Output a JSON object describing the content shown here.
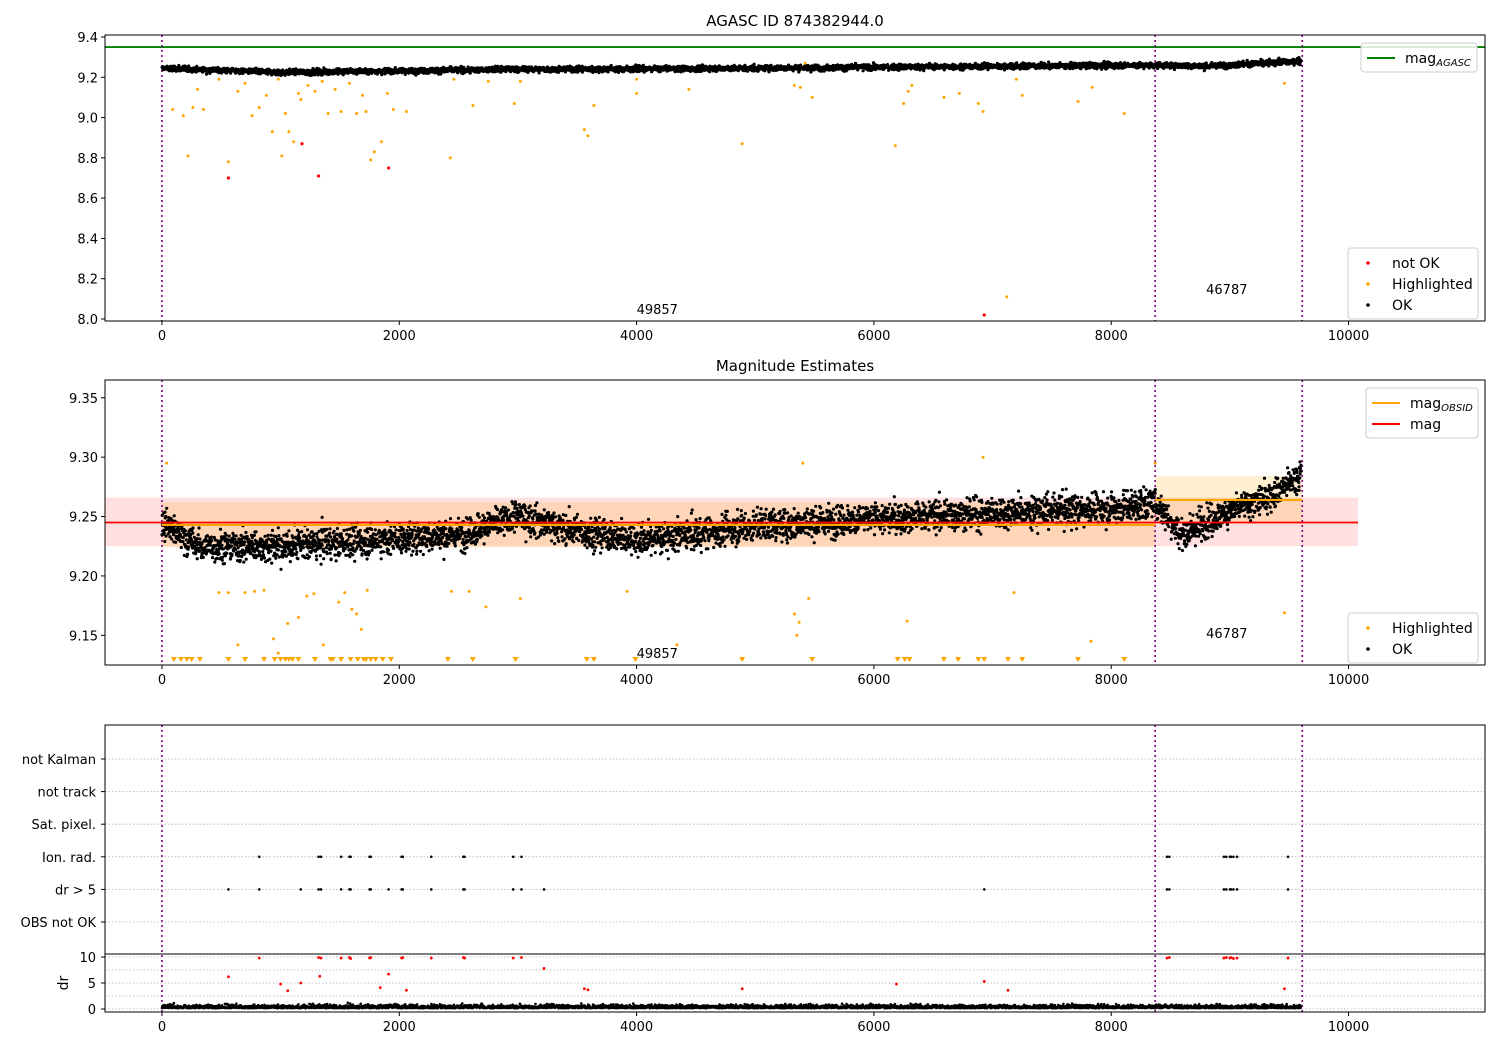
{
  "colors": {
    "ok": "#000000",
    "highlighted": "#ffa500",
    "not_ok": "#ff0000",
    "agasc_line": "#008000",
    "mag_line": "#ff0000",
    "obsid_line": "#ffa500",
    "obs_boundary": "#800080",
    "grid": "#b0b0b0"
  },
  "chart_data": [
    {
      "type": "scatter",
      "title": "AGASC ID 874382944.0",
      "xlim": [
        -480,
        11150
      ],
      "ylim": [
        7.99,
        9.41
      ],
      "xticks": [
        "0",
        "2000",
        "4000",
        "6000",
        "8000",
        "10000"
      ],
      "xtick_values": [
        0,
        2000,
        4000,
        6000,
        8000,
        10000
      ],
      "yticks": [
        "8.0",
        "8.2",
        "8.4",
        "8.6",
        "8.8",
        "9.0",
        "9.2",
        "9.4"
      ],
      "ytick_values": [
        8.0,
        8.2,
        8.4,
        8.6,
        8.8,
        9.0,
        9.2,
        9.4
      ],
      "obs_boundaries": [
        0,
        8370,
        9610
      ],
      "obsid_labels": [
        {
          "text": "49857",
          "x": 4000,
          "y": 8.05
        },
        {
          "text": "46787",
          "x": 8800,
          "y": 8.15
        }
      ],
      "mag_agasc": 9.35,
      "ok_band": {
        "x_start": 0,
        "x_end": 9600,
        "segments": [
          {
            "x": 0,
            "y": 9.245
          },
          {
            "x": 1000,
            "y": 9.225
          },
          {
            "x": 3000,
            "y": 9.24
          },
          {
            "x": 5000,
            "y": 9.245
          },
          {
            "x": 7000,
            "y": 9.255
          },
          {
            "x": 8370,
            "y": 9.26
          },
          {
            "x": 8800,
            "y": 9.255
          },
          {
            "x": 9600,
            "y": 9.28
          }
        ]
      },
      "highlighted": [
        [
          90,
          9.04
        ],
        [
          180,
          9.01
        ],
        [
          220,
          8.81
        ],
        [
          260,
          9.05
        ],
        [
          300,
          9.14
        ],
        [
          350,
          9.04
        ],
        [
          480,
          9.19
        ],
        [
          560,
          8.78
        ],
        [
          640,
          9.13
        ],
        [
          700,
          9.17
        ],
        [
          760,
          9.01
        ],
        [
          820,
          9.05
        ],
        [
          880,
          9.11
        ],
        [
          930,
          8.93
        ],
        [
          980,
          9.19
        ],
        [
          1010,
          8.81
        ],
        [
          1040,
          9.02
        ],
        [
          1070,
          8.93
        ],
        [
          1110,
          8.88
        ],
        [
          1150,
          9.12
        ],
        [
          1170,
          9.09
        ],
        [
          1230,
          9.16
        ],
        [
          1290,
          9.13
        ],
        [
          1350,
          9.18
        ],
        [
          1400,
          9.02
        ],
        [
          1460,
          9.14
        ],
        [
          1510,
          9.03
        ],
        [
          1580,
          9.17
        ],
        [
          1640,
          9.02
        ],
        [
          1690,
          9.11
        ],
        [
          1720,
          9.03
        ],
        [
          1760,
          8.79
        ],
        [
          1790,
          8.83
        ],
        [
          1850,
          8.88
        ],
        [
          1900,
          9.12
        ],
        [
          1950,
          9.04
        ],
        [
          2060,
          9.03
        ],
        [
          2430,
          8.8
        ],
        [
          2460,
          9.19
        ],
        [
          2620,
          9.06
        ],
        [
          2750,
          9.18
        ],
        [
          2970,
          9.07
        ],
        [
          3020,
          9.18
        ],
        [
          3560,
          8.94
        ],
        [
          3590,
          8.91
        ],
        [
          3640,
          9.06
        ],
        [
          4000,
          9.19
        ],
        [
          4000,
          9.12
        ],
        [
          4440,
          9.14
        ],
        [
          4890,
          8.87
        ],
        [
          5330,
          9.16
        ],
        [
          5380,
          9.15
        ],
        [
          5420,
          9.27
        ],
        [
          5480,
          9.1
        ],
        [
          6180,
          8.86
        ],
        [
          6250,
          9.07
        ],
        [
          6290,
          9.13
        ],
        [
          6320,
          9.16
        ],
        [
          6590,
          9.1
        ],
        [
          6720,
          9.12
        ],
        [
          6880,
          9.07
        ],
        [
          6920,
          9.03
        ],
        [
          7120,
          8.11
        ],
        [
          7200,
          9.19
        ],
        [
          7250,
          9.11
        ],
        [
          7720,
          9.08
        ],
        [
          7840,
          9.15
        ],
        [
          8110,
          9.02
        ],
        [
          9460,
          9.17
        ]
      ],
      "not_ok": [
        [
          560,
          8.7
        ],
        [
          1180,
          8.87
        ],
        [
          1320,
          8.71
        ],
        [
          1910,
          8.75
        ],
        [
          6930,
          8.02
        ]
      ],
      "legends": [
        {
          "position": "upper-right",
          "entries": [
            {
              "label": "mag",
              "subscript": "AGASC",
              "kind": "line",
              "color": "#008000"
            }
          ]
        },
        {
          "position": "lower-right",
          "entries": [
            {
              "label": "not OK",
              "kind": "dot",
              "color": "#ff0000"
            },
            {
              "label": "Highlighted",
              "kind": "dot",
              "color": "#ffa500"
            },
            {
              "label": "OK",
              "kind": "dot",
              "color": "#000000"
            }
          ]
        }
      ]
    },
    {
      "type": "scatter",
      "title": "Magnitude Estimates",
      "xlim": [
        -480,
        11150
      ],
      "ylim": [
        9.125,
        9.365
      ],
      "xticks": [
        "0",
        "2000",
        "4000",
        "6000",
        "8000",
        "10000"
      ],
      "xtick_values": [
        0,
        2000,
        4000,
        6000,
        8000,
        10000
      ],
      "yticks": [
        "9.15",
        "9.20",
        "9.25",
        "9.30",
        "9.35"
      ],
      "ytick_values": [
        9.15,
        9.2,
        9.25,
        9.3,
        9.35
      ],
      "obs_boundaries": [
        0,
        8370,
        9610
      ],
      "obsid_labels": [
        {
          "text": "49857",
          "x": 4000,
          "y": 9.135
        },
        {
          "text": "46787",
          "x": 8800,
          "y": 9.152
        }
      ],
      "mag": 9.245,
      "mag_band": [
        9.225,
        9.266
      ],
      "mag_band_x": [
        -480,
        10080
      ],
      "mag_obsid": [
        {
          "x_start": 0,
          "x_end": 8370,
          "value": 9.243,
          "band": [
            9.224,
            9.262
          ]
        },
        {
          "x_start": 8370,
          "x_end": 9610,
          "value": 9.264,
          "band": [
            9.244,
            9.284
          ]
        }
      ],
      "ok_trend": [
        {
          "x": 0,
          "y": 9.245
        },
        {
          "x": 300,
          "y": 9.225
        },
        {
          "x": 1000,
          "y": 9.225
        },
        {
          "x": 1500,
          "y": 9.228
        },
        {
          "x": 2500,
          "y": 9.235
        },
        {
          "x": 3000,
          "y": 9.25
        },
        {
          "x": 3500,
          "y": 9.238
        },
        {
          "x": 4000,
          "y": 9.23
        },
        {
          "x": 4500,
          "y": 9.235
        },
        {
          "x": 5000,
          "y": 9.242
        },
        {
          "x": 6000,
          "y": 9.248
        },
        {
          "x": 7000,
          "y": 9.253
        },
        {
          "x": 8000,
          "y": 9.257
        },
        {
          "x": 8370,
          "y": 9.262
        },
        {
          "x": 8600,
          "y": 9.235
        },
        {
          "x": 9000,
          "y": 9.255
        },
        {
          "x": 9300,
          "y": 9.265
        },
        {
          "x": 9600,
          "y": 9.285
        }
      ],
      "highlighted": [
        [
          40,
          9.295
        ],
        [
          480,
          9.186
        ],
        [
          560,
          9.186
        ],
        [
          640,
          9.142
        ],
        [
          700,
          9.186
        ],
        [
          780,
          9.187
        ],
        [
          860,
          9.188
        ],
        [
          940,
          9.147
        ],
        [
          980,
          9.135
        ],
        [
          1060,
          9.16
        ],
        [
          1150,
          9.165
        ],
        [
          1220,
          9.183
        ],
        [
          1280,
          9.185
        ],
        [
          1360,
          9.142
        ],
        [
          1490,
          9.178
        ],
        [
          1540,
          9.186
        ],
        [
          1600,
          9.172
        ],
        [
          1640,
          9.168
        ],
        [
          1680,
          9.155
        ],
        [
          1730,
          9.188
        ],
        [
          2440,
          9.187
        ],
        [
          2590,
          9.187
        ],
        [
          2730,
          9.174
        ],
        [
          3020,
          9.181
        ],
        [
          3920,
          9.187
        ],
        [
          4340,
          9.142
        ],
        [
          5330,
          9.168
        ],
        [
          5350,
          9.15
        ],
        [
          5370,
          9.161
        ],
        [
          5400,
          9.295
        ],
        [
          5450,
          9.181
        ],
        [
          6280,
          9.162
        ],
        [
          6920,
          9.3
        ],
        [
          7180,
          9.186
        ],
        [
          7830,
          9.145
        ],
        [
          8370,
          9.295
        ],
        [
          9460,
          9.169
        ]
      ],
      "floor_markers": [
        100,
        160,
        210,
        250,
        320,
        560,
        700,
        860,
        950,
        1000,
        1040,
        1070,
        1100,
        1150,
        1290,
        1420,
        1440,
        1510,
        1590,
        1650,
        1700,
        1720,
        1760,
        1800,
        1860,
        1930,
        2410,
        2620,
        2980,
        3580,
        3640,
        3990,
        4890,
        5480,
        6200,
        6260,
        6300,
        6590,
        6710,
        6880,
        6930,
        7130,
        7250,
        7720,
        8110
      ],
      "legends": [
        {
          "position": "upper-right",
          "entries": [
            {
              "label": "mag",
              "subscript": "OBSID",
              "kind": "line",
              "color": "#ffa500"
            },
            {
              "label": "mag",
              "kind": "line",
              "color": "#ff0000"
            }
          ]
        },
        {
          "position": "lower-right",
          "entries": [
            {
              "label": "Highlighted",
              "kind": "dot",
              "color": "#ffa500"
            },
            {
              "label": "OK",
              "kind": "dot",
              "color": "#000000"
            }
          ]
        }
      ]
    },
    {
      "type": "scatter",
      "title": "",
      "xlim": [
        -480,
        11150
      ],
      "ylim": [
        0,
        10
      ],
      "xticks": [
        "0",
        "2000",
        "4000",
        "6000",
        "8000",
        "10000"
      ],
      "xtick_values": [
        0,
        2000,
        4000,
        6000,
        8000,
        10000
      ],
      "ylabel": "dr",
      "yticks": [
        "0",
        "5",
        "10"
      ],
      "ytick_values": [
        0,
        5,
        10
      ],
      "flag_rows": [
        "not Kalman",
        "not track",
        "Sat. pixel.",
        "Ion. rad.",
        "dr > 5",
        "OBS not OK"
      ],
      "obs_boundaries": [
        0,
        8370,
        9610
      ],
      "flag_points": {
        "Ion. rad.": [
          820,
          1320,
          1340,
          1510,
          1580,
          1590,
          1750,
          1760,
          2020,
          2030,
          2270,
          2540,
          2550,
          2960,
          3030,
          8470,
          8490,
          8950,
          8970,
          9000,
          9010,
          9030,
          9060,
          9490
        ],
        "dr > 5": [
          560,
          820,
          1170,
          1320,
          1340,
          1510,
          1580,
          1590,
          1750,
          1760,
          1910,
          2020,
          2030,
          2270,
          2540,
          2550,
          2960,
          3030,
          3220,
          6930,
          8470,
          8490,
          8950,
          8970,
          9000,
          9010,
          9030,
          9060,
          9490
        ]
      },
      "dr_red": [
        [
          560,
          6.2
        ],
        [
          820,
          9.8
        ],
        [
          1000,
          4.8
        ],
        [
          1060,
          3.5
        ],
        [
          1170,
          5.0
        ],
        [
          1320,
          9.9
        ],
        [
          1330,
          6.3
        ],
        [
          1340,
          9.8
        ],
        [
          1510,
          9.8
        ],
        [
          1580,
          9.9
        ],
        [
          1590,
          9.7
        ],
        [
          1750,
          9.8
        ],
        [
          1760,
          9.9
        ],
        [
          1840,
          4.1
        ],
        [
          1910,
          6.7
        ],
        [
          2020,
          9.8
        ],
        [
          2030,
          9.9
        ],
        [
          2060,
          3.6
        ],
        [
          2270,
          9.8
        ],
        [
          2540,
          9.9
        ],
        [
          2550,
          9.8
        ],
        [
          2960,
          9.8
        ],
        [
          3030,
          9.9
        ],
        [
          3220,
          7.8
        ],
        [
          3560,
          3.9
        ],
        [
          3590,
          3.7
        ],
        [
          4890,
          3.9
        ],
        [
          6190,
          4.8
        ],
        [
          6930,
          5.3
        ],
        [
          7130,
          3.6
        ],
        [
          8470,
          9.8
        ],
        [
          8490,
          9.9
        ],
        [
          8950,
          9.8
        ],
        [
          8970,
          9.9
        ],
        [
          9000,
          9.8
        ],
        [
          9010,
          9.9
        ],
        [
          9030,
          9.7
        ],
        [
          9060,
          9.8
        ],
        [
          9460,
          3.9
        ],
        [
          9490,
          9.8
        ]
      ]
    }
  ]
}
